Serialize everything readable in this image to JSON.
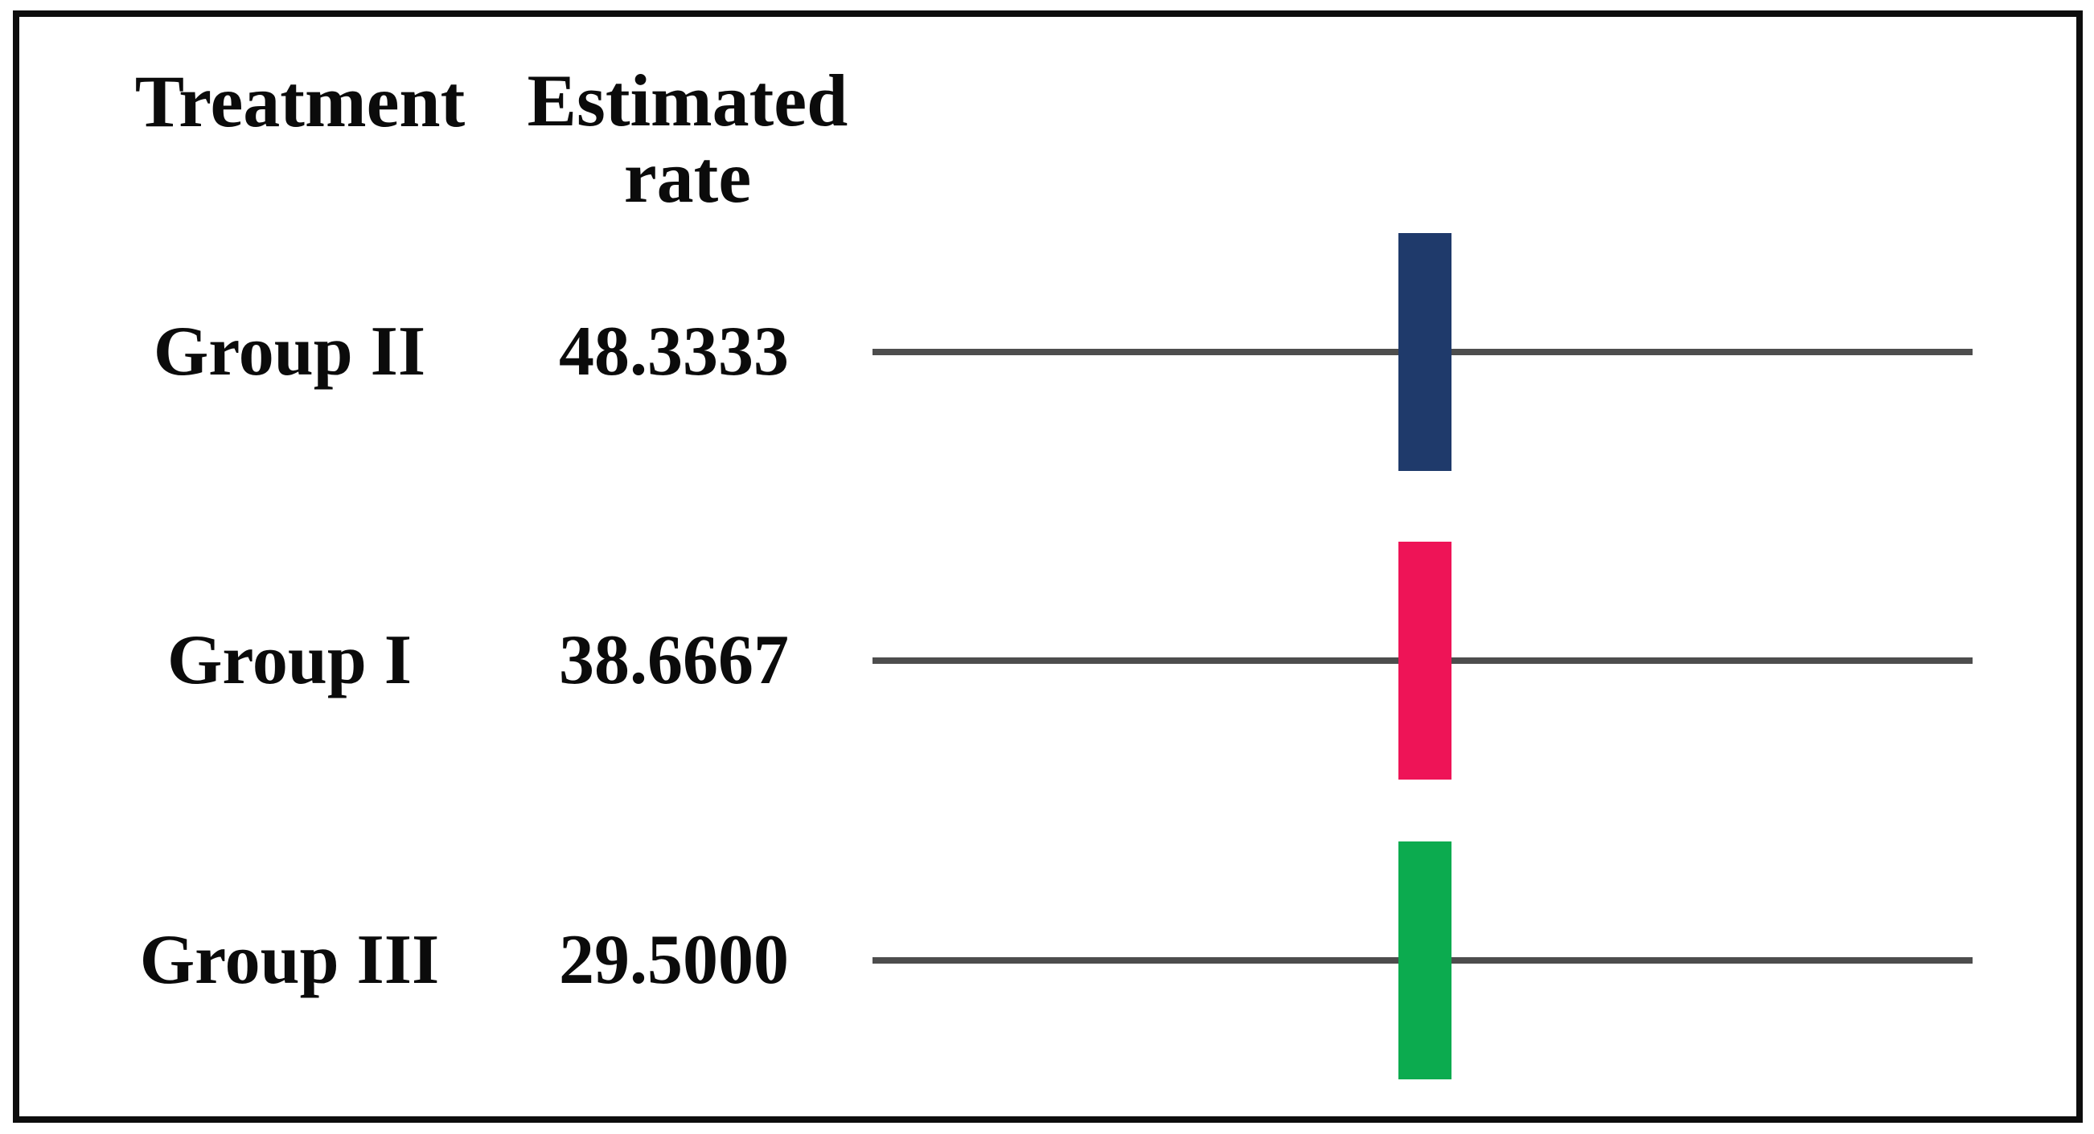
{
  "figure": {
    "header": {
      "treatment_label": "Treatment",
      "rate_label": "Estimated rate"
    },
    "rows": [
      {
        "treatment": "Group II",
        "rate": "48.3333",
        "bar_color": "#1F3A6B",
        "bar_color_name": "navy"
      },
      {
        "treatment": "Group I",
        "rate": "38.6667",
        "bar_color": "#EE1457",
        "bar_color_name": "crimson"
      },
      {
        "treatment": "Group III",
        "rate": "29.5000",
        "bar_color": "#0CAB4F",
        "bar_color_name": "green"
      }
    ],
    "colors": {
      "reference_line": "#4d4d4d",
      "frame_border": "#0d0d0d",
      "text": "#0b0b0b",
      "background": "#ffffff"
    }
  },
  "chart_data": {
    "type": "bar",
    "subtype": "means-plot-with-reference-lines",
    "columns": [
      "Treatment",
      "Estimated rate"
    ],
    "categories": [
      "Group II",
      "Group I",
      "Group III"
    ],
    "values": [
      48.3333,
      38.6667,
      29.5
    ],
    "value_labels": [
      "48.3333",
      "38.6667",
      "29.5000"
    ],
    "series_colors": [
      "#1F3A6B",
      "#EE1457",
      "#0CAB4F"
    ],
    "title": "",
    "xlabel": "",
    "ylabel": "",
    "legend": false,
    "grid": false,
    "layout_hints": {
      "rows_top_to_bottom": [
        "Group II",
        "Group I",
        "Group III"
      ],
      "marker": "vertical colored rectangle centered on a horizontal dark-gray reference line per row",
      "frame": "single black rectangular border around entire figure"
    }
  }
}
